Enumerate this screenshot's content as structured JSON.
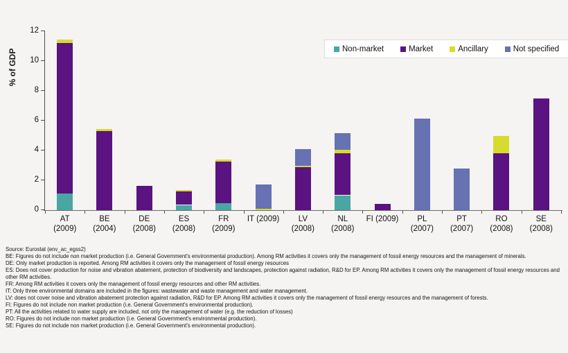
{
  "chart_data": {
    "type": "bar",
    "stacked": true,
    "title": "",
    "ylabel": "% of GDP",
    "ylim": [
      0,
      12
    ],
    "yticks": [
      0,
      2,
      4,
      6,
      8,
      10,
      12
    ],
    "grid": false,
    "legend_position": "top-right",
    "categories": [
      "AT (2009)",
      "BE (2004)",
      "DE (2008)",
      "ES (2008)",
      "FR (2009)",
      "IT (2009)",
      "LV (2008)",
      "NL (2008)",
      "FI (2009)",
      "PL (2007)",
      "PT (2007)",
      "RO (2008)",
      "SE (2008)"
    ],
    "category_lines": [
      [
        "AT",
        "(2009)"
      ],
      [
        "BE",
        "(2004)"
      ],
      [
        "DE",
        "(2008)"
      ],
      [
        "ES",
        "(2008)"
      ],
      [
        "FR",
        "(2009)"
      ],
      [
        "IT (2009)"
      ],
      [
        "LV",
        "(2008)"
      ],
      [
        "NL",
        "(2008)"
      ],
      [
        "FI (2009)"
      ],
      [
        "PL",
        "(2007)"
      ],
      [
        "PT",
        "(2007)"
      ],
      [
        "RO",
        "(2008)"
      ],
      [
        "SE",
        "(2008)"
      ]
    ],
    "series": [
      {
        "name": "Non-market",
        "color": "#4AA6A2",
        "values": [
          1.1,
          0,
          0,
          0.35,
          0.45,
          0,
          0,
          1.0,
          0,
          0,
          0,
          0,
          0
        ]
      },
      {
        "name": "Market",
        "color": "#5A1380",
        "values": [
          10.1,
          5.3,
          1.65,
          0.9,
          2.8,
          0,
          2.9,
          2.8,
          0.4,
          0,
          0,
          3.8,
          7.5
        ]
      },
      {
        "name": "Ancillary",
        "color": "#D6DC2E",
        "values": [
          0.25,
          0.15,
          0,
          0.1,
          0.15,
          0.1,
          0.08,
          0.25,
          0,
          0,
          0,
          1.2,
          0
        ]
      },
      {
        "name": "Not specified",
        "color": "#6672B2",
        "values": [
          0,
          0,
          0,
          0,
          0,
          1.6,
          1.12,
          1.1,
          0,
          6.15,
          2.8,
          0,
          0
        ]
      }
    ]
  },
  "footnotes": {
    "source": "Source: Eurostat (env_ac_egss2)",
    "lines": [
      "BE: Figures do not include non market production (i.e. General Government's environmental production). Among RM activities it covers only the management of fossil energy resources and the management of minerals.",
      "DE: Only market production is reported. Among RM activities it covers only the management of fossil energy resources",
      "ES: Does not cover production for noise and vibration abatement, protection of biodiversity and landscapes, protection against radiation, R&D for EP. Among RM activities it covers only the management of fossil energy resources and other RM activities.",
      "FR: Among RM activities it covers only the management of fossil energy resources and other RM activities.",
      "IT: Only three environmental domains are included in the figures: wastewater and waste management and water management.",
      "LV: does not cover noise and vibration abatement protection against radiation, R&D for EP. Among RM activities it covers only the management of fossil energy resources and the management of forests.",
      "FI: Figures do not include non market production (i.e. General Government's environmental production).",
      "PT: All the activities related to water supply are included, not only the management of water (e.g. the reduction of losses)",
      "RO: Figures do not include non market production (i.e. General Government's environmental production).",
      "SE: Figures do not include non market production (i.e. General Government's environmental production)."
    ]
  }
}
